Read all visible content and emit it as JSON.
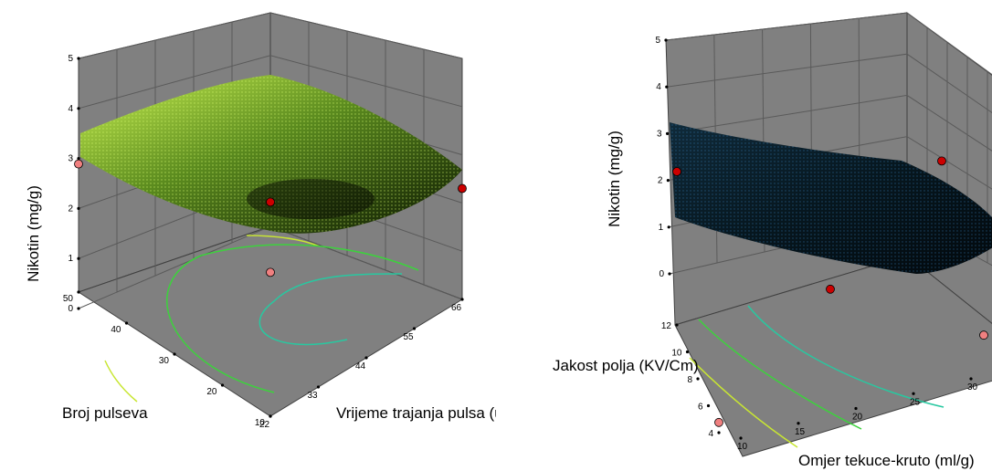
{
  "chart_data": [
    {
      "type": "surface3d",
      "title": "",
      "xlabel": "Vrijeme trajanja pulsa (us)",
      "ylabel": "Broj pulseva",
      "zlabel": "Nikotin (mg/g)",
      "x_ticks": [
        "22",
        "33",
        "44",
        "55",
        "66"
      ],
      "y_ticks": [
        "10",
        "20",
        "30",
        "40",
        "50"
      ],
      "z_ticks": [
        "0",
        "1",
        "2",
        "3",
        "4",
        "5"
      ],
      "xlim": [
        22,
        66
      ],
      "ylim": [
        10,
        50
      ],
      "zlim": [
        0,
        5
      ],
      "surface_color": "#9acd32",
      "contour_colors": [
        "#c8e632",
        "#3cd23c",
        "#28c8a0"
      ],
      "points": [
        {
          "x": 22,
          "y": 50,
          "z": 2.6,
          "color": "#f08080"
        },
        {
          "x": 44,
          "y": 30,
          "z": 2.0,
          "color": "#cc0000"
        },
        {
          "x": 66,
          "y": 10,
          "z": 2.5,
          "color": "#cc0000"
        },
        {
          "x": 44,
          "y": 30,
          "z": 0.5,
          "color": "#f08080"
        }
      ]
    },
    {
      "type": "surface3d",
      "title": "",
      "xlabel": "Omjer tekuce-kruto (ml/g)",
      "ylabel": "Jakost polja (KV/Cm)",
      "zlabel": "Nikotin (mg/g)",
      "x_ticks": [
        "10",
        "15",
        "20",
        "25",
        "30"
      ],
      "y_ticks": [
        "4",
        "6",
        "8",
        "10",
        "12"
      ],
      "z_ticks": [
        "0",
        "1",
        "2",
        "3",
        "4",
        "5"
      ],
      "xlim": [
        10,
        30
      ],
      "ylim": [
        4,
        12
      ],
      "zlim": [
        0,
        5
      ],
      "surface_color": "#1e6bb8",
      "contour_colors": [
        "#c8e632",
        "#3cd23c",
        "#28c8a0"
      ],
      "points": [
        {
          "x": 10,
          "y": 12,
          "z": 3.0,
          "color": "#cc0000"
        },
        {
          "x": 10,
          "y": 4,
          "z": 0.2,
          "color": "#f08080"
        },
        {
          "x": 20,
          "y": 8,
          "z": 1.2,
          "color": "#cc0000"
        },
        {
          "x": 30,
          "y": 12,
          "z": 2.1,
          "color": "#cc0000"
        },
        {
          "x": 30,
          "y": 4,
          "z": 0.8,
          "color": "#f08080"
        }
      ]
    }
  ]
}
